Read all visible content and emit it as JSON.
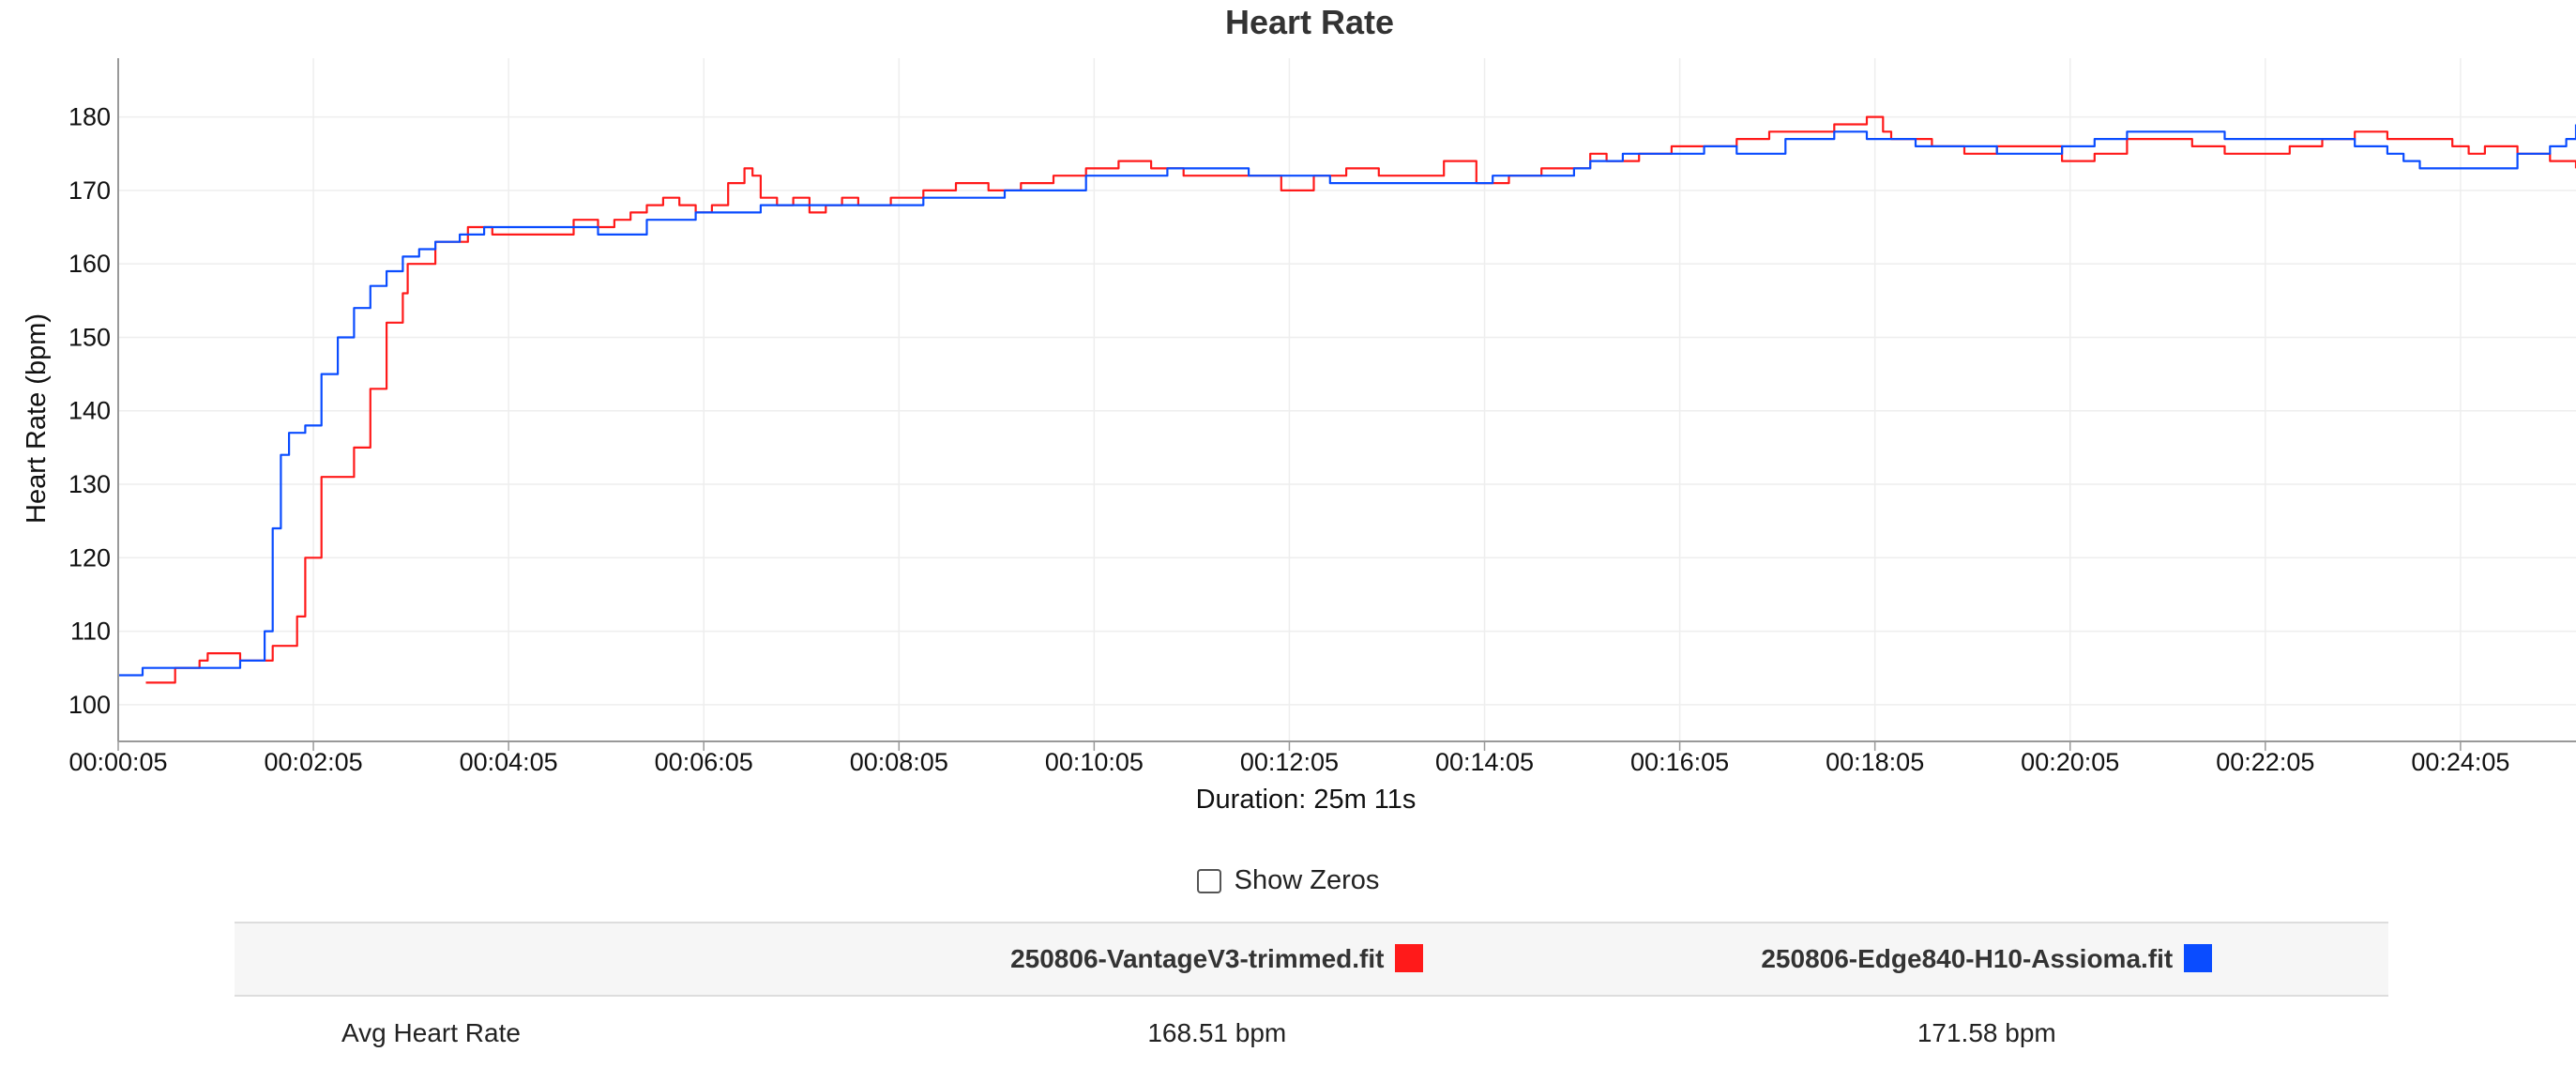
{
  "chart_data": {
    "type": "line",
    "title": "Heart Rate",
    "xlabel": "Duration: 25m 11s",
    "ylabel": "Heart Rate (bpm)",
    "x_unit": "seconds",
    "xlim": [
      5,
      1516
    ],
    "ylim": [
      95,
      188
    ],
    "x_ticks": [
      "00:00:05",
      "00:02:05",
      "00:04:05",
      "00:06:05",
      "00:08:05",
      "00:10:05",
      "00:12:05",
      "00:14:05",
      "00:16:05",
      "00:18:05",
      "00:20:05",
      "00:22:05",
      "00:24:05"
    ],
    "y_ticks": [
      100,
      110,
      120,
      130,
      140,
      150,
      160,
      170,
      180
    ],
    "grid": true,
    "series": [
      {
        "name": "250806-VantageV3-trimmed.fit",
        "color": "#ff1a1a",
        "x": [
          22,
          30,
          40,
          55,
          60,
          70,
          80,
          95,
          100,
          110,
          115,
          120,
          130,
          150,
          160,
          170,
          180,
          183,
          200,
          220,
          235,
          270,
          285,
          300,
          310,
          320,
          330,
          340,
          350,
          360,
          370,
          380,
          390,
          395,
          400,
          410,
          420,
          430,
          440,
          450,
          460,
          480,
          500,
          520,
          540,
          560,
          580,
          600,
          620,
          640,
          660,
          680,
          700,
          720,
          740,
          760,
          780,
          800,
          820,
          840,
          860,
          880,
          900,
          910,
          920,
          940,
          960,
          980,
          1000,
          1020,
          1040,
          1060,
          1080,
          1090,
          1095,
          1100,
          1110,
          1120,
          1140,
          1160,
          1180,
          1200,
          1220,
          1240,
          1260,
          1280,
          1300,
          1320,
          1340,
          1360,
          1380,
          1400,
          1420,
          1440,
          1450,
          1460,
          1480,
          1500,
          1516
        ],
        "y": [
          103,
          103,
          105,
          106,
          107,
          107,
          106,
          106,
          108,
          108,
          112,
          120,
          131,
          135,
          143,
          152,
          156,
          160,
          163,
          165,
          164,
          164,
          166,
          165,
          166,
          167,
          168,
          169,
          168,
          167,
          168,
          171,
          173,
          172,
          169,
          168,
          169,
          167,
          168,
          169,
          168,
          169,
          170,
          171,
          170,
          171,
          172,
          173,
          174,
          173,
          172,
          172,
          172,
          170,
          172,
          173,
          172,
          172,
          174,
          171,
          172,
          173,
          173,
          175,
          174,
          175,
          176,
          176,
          177,
          178,
          178,
          179,
          180,
          178,
          177,
          177,
          177,
          176,
          175,
          176,
          176,
          174,
          175,
          177,
          177,
          176,
          175,
          175,
          176,
          177,
          178,
          177,
          177,
          176,
          175,
          176,
          175,
          174,
          173
        ]
      },
      {
        "name": "250806-Edge840-H10-Assioma.fit",
        "color": "#0a4cff",
        "x": [
          5,
          20,
          40,
          60,
          80,
          90,
          95,
          100,
          105,
          110,
          120,
          130,
          140,
          150,
          160,
          170,
          180,
          190,
          200,
          215,
          230,
          250,
          280,
          300,
          330,
          360,
          400,
          450,
          500,
          550,
          600,
          650,
          700,
          750,
          800,
          850,
          900,
          910,
          930,
          960,
          980,
          1000,
          1030,
          1060,
          1080,
          1100,
          1110,
          1120,
          1140,
          1160,
          1180,
          1200,
          1220,
          1240,
          1260,
          1280,
          1300,
          1320,
          1340,
          1360,
          1380,
          1400,
          1410,
          1420,
          1440,
          1460,
          1480,
          1500,
          1510,
          1516
        ],
        "y": [
          104,
          105,
          105,
          105,
          106,
          106,
          110,
          124,
          134,
          137,
          138,
          145,
          150,
          154,
          157,
          159,
          161,
          162,
          163,
          164,
          165,
          165,
          165,
          164,
          166,
          167,
          168,
          168,
          169,
          170,
          172,
          173,
          172,
          171,
          171,
          172,
          173,
          174,
          175,
          175,
          176,
          175,
          177,
          178,
          177,
          177,
          176,
          176,
          176,
          175,
          175,
          176,
          177,
          178,
          178,
          178,
          177,
          177,
          177,
          177,
          176,
          175,
          174,
          173,
          173,
          173,
          175,
          176,
          177,
          179
        ]
      }
    ]
  },
  "controls": {
    "show_zeros_label": "Show Zeros",
    "show_zeros_checked": false
  },
  "stats_table": {
    "header_empty": "",
    "file1": "250806-VantageV3-trimmed.fit",
    "file1_color": "#ff1a1a",
    "file2": "250806-Edge840-H10-Assioma.fit",
    "file2_color": "#0a4cff",
    "rows": [
      {
        "metric": "Avg Heart Rate",
        "file1": "168.51 bpm",
        "file2": "171.58 bpm"
      }
    ]
  }
}
